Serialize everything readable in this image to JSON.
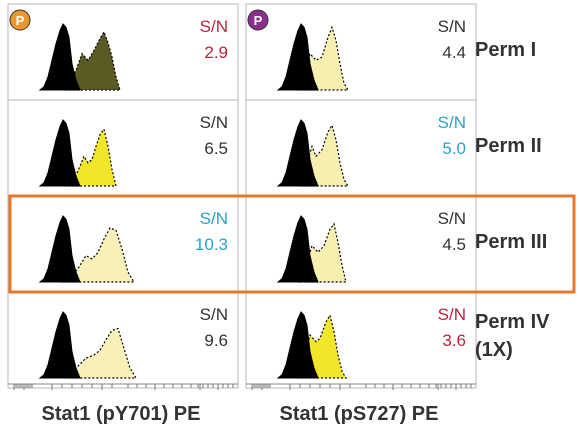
{
  "chart_data": {
    "type": "histogram-grid",
    "columns": [
      {
        "marker": "P",
        "marker_color": "#f0962e",
        "xlabel": "Stat1 (pY701) PE"
      },
      {
        "marker": "P",
        "marker_color": "#8b2e8e",
        "xlabel": "Stat1 (pS727) PE"
      }
    ],
    "rows": [
      {
        "label": "Perm I"
      },
      {
        "label": "Perm II"
      },
      {
        "label": "Perm III",
        "highlighted": true
      },
      {
        "label": "Perm IV",
        "label_line2": "(1X)"
      }
    ],
    "sn_label": "S/N",
    "panels": [
      [
        {
          "sn": "2.9",
          "sn_color": "#c0223a",
          "fill": "#5c5a24"
        },
        {
          "sn": "S/N",
          "sn_color": "#333333",
          "fill": "#f2e62a"
        }
      ],
      [
        {
          "sn": "4.4",
          "sn_color": "#333333",
          "fill": "#f5efb0"
        },
        {
          "sn": "5.0",
          "sn_color": "#2aa2c8",
          "fill": "#f5efb0"
        }
      ]
    ],
    "values": {
      "stat1_pY701": [
        {
          "row": "Perm I",
          "sn": "2.9",
          "sn_color": "#c0223a",
          "fill": "#5c5a24"
        },
        {
          "row": "Perm II",
          "sn": "6.5",
          "sn_color": "#333333",
          "fill": "#f2e62a"
        },
        {
          "row": "Perm III",
          "sn": "10.3",
          "sn_color": "#2aa2c8",
          "fill": "#f7f0b8"
        },
        {
          "row": "Perm IV",
          "sn": "9.6",
          "sn_color": "#333333",
          "fill": "#f7f0b8"
        }
      ],
      "stat1_pS727": [
        {
          "row": "Perm I",
          "sn": "4.4",
          "sn_color": "#333333",
          "fill": "#f5efb0"
        },
        {
          "row": "Perm II",
          "sn": "5.0",
          "sn_color": "#2aa2c8",
          "fill": "#f5efb0"
        },
        {
          "row": "Perm III",
          "sn": "4.5",
          "sn_color": "#333333",
          "fill": "#f5efb0"
        },
        {
          "row": "Perm IV",
          "sn": "3.6",
          "sn_color": "#c0223a",
          "fill": "#f2e62a"
        }
      ]
    },
    "highlight_color": "#e8772e",
    "control_fill": "#000000"
  }
}
